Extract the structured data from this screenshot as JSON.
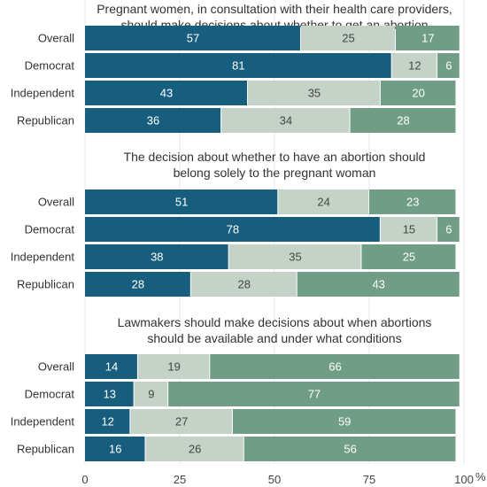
{
  "chart_data": {
    "type": "bar",
    "orientation": "horizontal",
    "stacked": true,
    "categories": [
      "Overall",
      "Democrat",
      "Independent",
      "Republican"
    ],
    "series_colors": [
      "#175e7e",
      "#c4d2c8",
      "#6f9d85"
    ],
    "value_label_colors": [
      "#ffffff",
      "#444444",
      "#ffffff"
    ],
    "xlim": [
      0,
      100
    ],
    "xticks": [
      "0",
      "25",
      "50",
      "75",
      "100"
    ],
    "x_unit": "%",
    "grid": true,
    "panels": [
      {
        "title_lines": [
          "Pregnant women, in consultation with their health care providers,",
          "should make decisions about whether to get an abortion"
        ],
        "rows": [
          {
            "values": [
              57,
              25,
              17
            ]
          },
          {
            "values": [
              81,
              12,
              6
            ]
          },
          {
            "values": [
              43,
              35,
              20
            ]
          },
          {
            "values": [
              36,
              34,
              28
            ]
          }
        ]
      },
      {
        "title_lines": [
          "The decision about whether to have an abortion should",
          "belong solely to the pregnant woman"
        ],
        "rows": [
          {
            "values": [
              51,
              24,
              23
            ]
          },
          {
            "values": [
              78,
              15,
              6
            ]
          },
          {
            "values": [
              38,
              35,
              25
            ]
          },
          {
            "values": [
              28,
              28,
              43
            ]
          }
        ]
      },
      {
        "title_lines": [
          "Lawmakers should make decisions about when abortions",
          "should be available and under what conditions"
        ],
        "rows": [
          {
            "values": [
              14,
              19,
              66
            ]
          },
          {
            "values": [
              13,
              9,
              77
            ]
          },
          {
            "values": [
              12,
              27,
              59
            ]
          },
          {
            "values": [
              16,
              26,
              56
            ]
          }
        ]
      }
    ]
  }
}
